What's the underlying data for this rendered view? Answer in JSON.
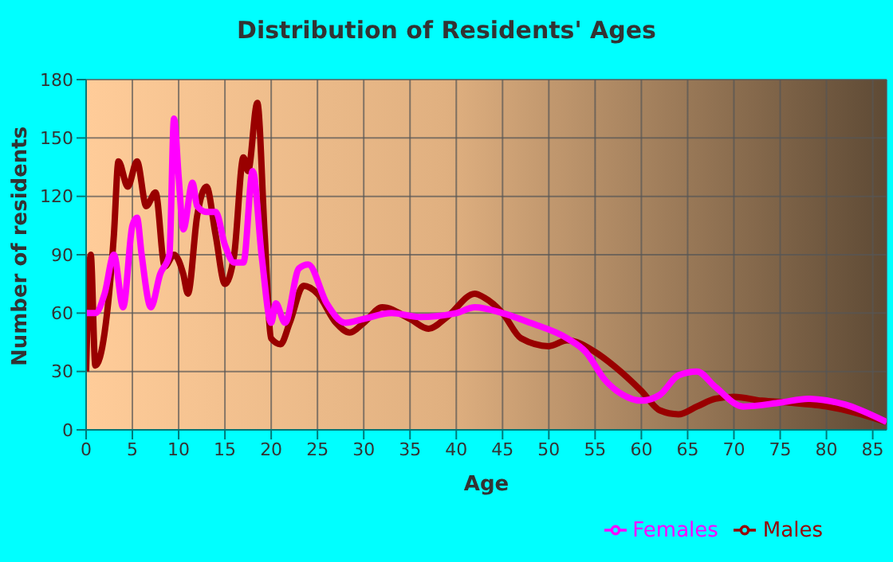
{
  "chart_data": {
    "type": "line",
    "title": "Distribution of Residents' Ages",
    "xlabel": "Age",
    "ylabel": "Number of residents",
    "xlim": [
      0,
      86.5
    ],
    "xticks": [
      0,
      5,
      10,
      15,
      20,
      25,
      30,
      35,
      40,
      45,
      50,
      55,
      60,
      65,
      70,
      75,
      80,
      85
    ],
    "ylim": [
      0,
      180
    ],
    "yticks": [
      0,
      30,
      60,
      90,
      120,
      150,
      180
    ],
    "grid": true,
    "legend": "bottom right",
    "marker": "none",
    "line_style": "solid",
    "series": [
      {
        "name": "Males",
        "color": "#990000",
        "x": [
          0,
          0.5,
          1,
          2,
          3,
          3.5,
          4.5,
          5.5,
          6.5,
          7.5,
          8.5,
          9.5,
          10.5,
          11,
          12,
          13,
          14,
          15,
          16,
          17,
          17.5,
          18.5,
          19.3,
          20,
          21,
          22,
          23.5,
          25,
          27,
          28.5,
          30,
          32,
          35,
          37,
          39,
          42,
          43,
          45,
          47,
          50,
          52,
          55,
          57,
          60,
          62,
          64,
          66,
          68,
          70,
          73,
          76,
          80,
          83,
          86.5
        ],
        "values": [
          30,
          90,
          33,
          50,
          100,
          138,
          125,
          138,
          115,
          122,
          84,
          90,
          80,
          70,
          110,
          125,
          100,
          75,
          90,
          140,
          133,
          168,
          100,
          47,
          44,
          55,
          74,
          70,
          55,
          50,
          55,
          63,
          57,
          52,
          58,
          70,
          68,
          60,
          47,
          43,
          46,
          40,
          33,
          20,
          10,
          8,
          12,
          16,
          17,
          15,
          14,
          12,
          9,
          4
        ]
      },
      {
        "name": "Females",
        "color": "#ff00ff",
        "x": [
          0,
          1,
          2,
          3,
          4,
          5,
          5.5,
          6,
          7,
          8,
          9,
          9.5,
          10,
          10.5,
          11.5,
          12,
          13,
          14,
          15,
          16,
          17,
          18,
          19,
          20,
          20.5,
          21.5,
          23,
          24,
          26,
          28,
          30,
          33,
          36,
          40,
          42,
          45,
          48,
          52,
          54,
          56,
          58,
          60,
          62,
          64,
          66,
          68,
          71,
          75,
          78,
          82,
          86.5
        ],
        "values": [
          60,
          60,
          70,
          90,
          63,
          105,
          109,
          90,
          63,
          80,
          90,
          160,
          130,
          103,
          127,
          115,
          112,
          112,
          95,
          86,
          86,
          133,
          88,
          55,
          65,
          55,
          83,
          85,
          65,
          55,
          57,
          60,
          58,
          60,
          63,
          60,
          55,
          47,
          40,
          26,
          18,
          15,
          18,
          28,
          30,
          22,
          12,
          14,
          16,
          13,
          4
        ]
      }
    ]
  }
}
